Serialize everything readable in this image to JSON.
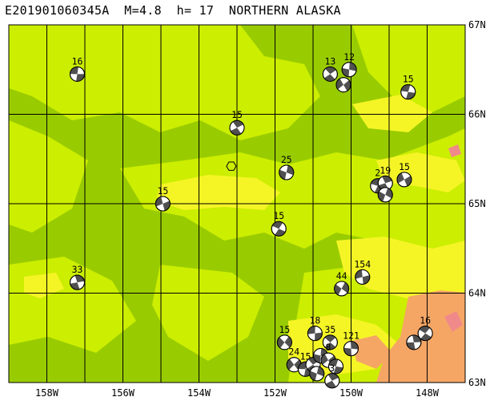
{
  "header": {
    "title": "E201901060345A  M=4.8  h= 17  NORTHERN ALASKA"
  },
  "colors": {
    "lowland": "#99cc00",
    "midland": "#ccee00",
    "upland": "#f5f526",
    "mountain": "#f5a665",
    "peak": "#f08a8a",
    "grid": "#000000",
    "beachball_light": "#ffffff",
    "beachball_dark": "#505050"
  },
  "axes": {
    "lon_labels": [
      "158W",
      "156W",
      "154W",
      "152W",
      "150W",
      "148W"
    ],
    "lat_labels": [
      "67N",
      "66N",
      "65N",
      "64N",
      "63N"
    ]
  },
  "epicenter_marker": {
    "name": "hexagon",
    "lon": -153.15,
    "lat": 65.42
  },
  "events": [
    {
      "depth": "16",
      "lon": -157.2,
      "lat": 66.45
    },
    {
      "depth": "13",
      "lon": -150.55,
      "lat": 66.45
    },
    {
      "depth": "12",
      "lon": -150.05,
      "lat": 66.5
    },
    {
      "depth": "",
      "lon": -150.2,
      "lat": 66.33
    },
    {
      "depth": "15",
      "lon": -148.5,
      "lat": 66.25
    },
    {
      "depth": "15",
      "lon": -153.0,
      "lat": 65.85
    },
    {
      "depth": "25",
      "lon": -151.7,
      "lat": 65.35
    },
    {
      "depth": "15",
      "lon": -148.6,
      "lat": 65.27
    },
    {
      "depth": "2",
      "lon": -149.3,
      "lat": 65.2
    },
    {
      "depth": "19",
      "lon": -149.1,
      "lat": 65.23
    },
    {
      "depth": "",
      "lon": -149.1,
      "lat": 65.1
    },
    {
      "depth": "15",
      "lon": -154.95,
      "lat": 65.0
    },
    {
      "depth": "15",
      "lon": -151.9,
      "lat": 64.72
    },
    {
      "depth": "33",
      "lon": -157.2,
      "lat": 64.12
    },
    {
      "depth": "44",
      "lon": -150.25,
      "lat": 64.05
    },
    {
      "depth": "154",
      "lon": -149.7,
      "lat": 64.18
    },
    {
      "depth": "16",
      "lon": -148.05,
      "lat": 63.55
    },
    {
      "depth": "",
      "lon": -148.35,
      "lat": 63.45
    },
    {
      "depth": "15",
      "lon": -151.75,
      "lat": 63.45
    },
    {
      "depth": "18",
      "lon": -150.95,
      "lat": 63.55
    },
    {
      "depth": "35",
      "lon": -150.55,
      "lat": 63.45
    },
    {
      "depth": "121",
      "lon": -150.0,
      "lat": 63.38
    },
    {
      "depth": "24",
      "lon": -151.5,
      "lat": 63.2
    },
    {
      "depth": "15",
      "lon": -151.2,
      "lat": 63.15
    },
    {
      "depth": "",
      "lon": -151.0,
      "lat": 63.2
    },
    {
      "depth": "",
      "lon": -150.8,
      "lat": 63.3
    },
    {
      "depth": "8",
      "lon": -150.6,
      "lat": 63.25
    },
    {
      "depth": "",
      "lon": -150.4,
      "lat": 63.18
    },
    {
      "depth": "3",
      "lon": -150.5,
      "lat": 63.02
    },
    {
      "depth": "",
      "lon": -150.9,
      "lat": 63.1
    }
  ]
}
